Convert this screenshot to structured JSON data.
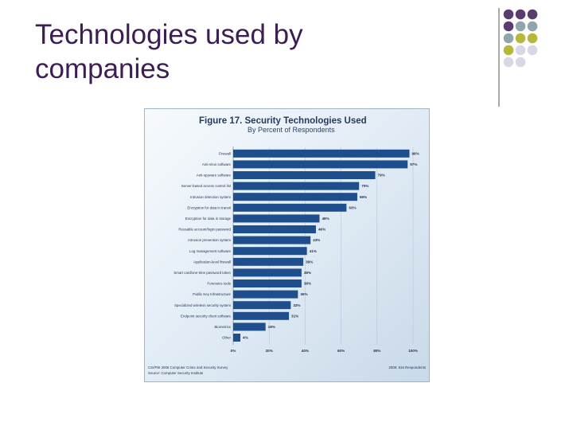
{
  "slide": {
    "title_line1": "Technologies used by",
    "title_line2": "companies",
    "deco_colors": {
      "purple": "#5a3c6e",
      "teal": "#8fa6ad",
      "olive": "#b6b83b",
      "lavender": "#d9d6e6"
    }
  },
  "chart_data": {
    "type": "bar",
    "orientation": "horizontal",
    "title": "Figure 17. Security Technologies Used",
    "subtitle": "By Percent of Respondents",
    "categories": [
      "Firewall",
      "Anti-virus software",
      "Anti-spyware software",
      "Server-based access control list",
      "Intrusion detection system",
      "Encryption for data in transit",
      "Encryption for data in storage",
      "Reusable account/login password",
      "Intrusion prevention system",
      "Log management software",
      "Application-level firewall",
      "Smart card/one-time password token",
      "Forensics tools",
      "Public Key Infrastructure",
      "Specialized wireless security system",
      "Endpoint security client software",
      "Biometrics",
      "Other"
    ],
    "value_labels": [
      "98%",
      "97%",
      "79%",
      "70%",
      "69%",
      "63%",
      "48%",
      "46%",
      "43%",
      "41%",
      "39%",
      "38%",
      "38%",
      "36%",
      "32%",
      "31%",
      "18%",
      "4%"
    ],
    "values": [
      98,
      97,
      79,
      70,
      69,
      63,
      48,
      46,
      43,
      41,
      39,
      38,
      38,
      36,
      32,
      31,
      18,
      4
    ],
    "x_tick_labels": [
      "0%",
      "20%",
      "40%",
      "60%",
      "80%",
      "100%"
    ],
    "xlim": [
      0,
      100
    ],
    "bar_color": "#1f4e8c",
    "footer_left_line1": "CSI/FBI 2006 Computer Crime and Security Survey",
    "footer_left_line2": "Source: Computer Security Institute",
    "footer_right": "2006: 616 Respondents"
  }
}
